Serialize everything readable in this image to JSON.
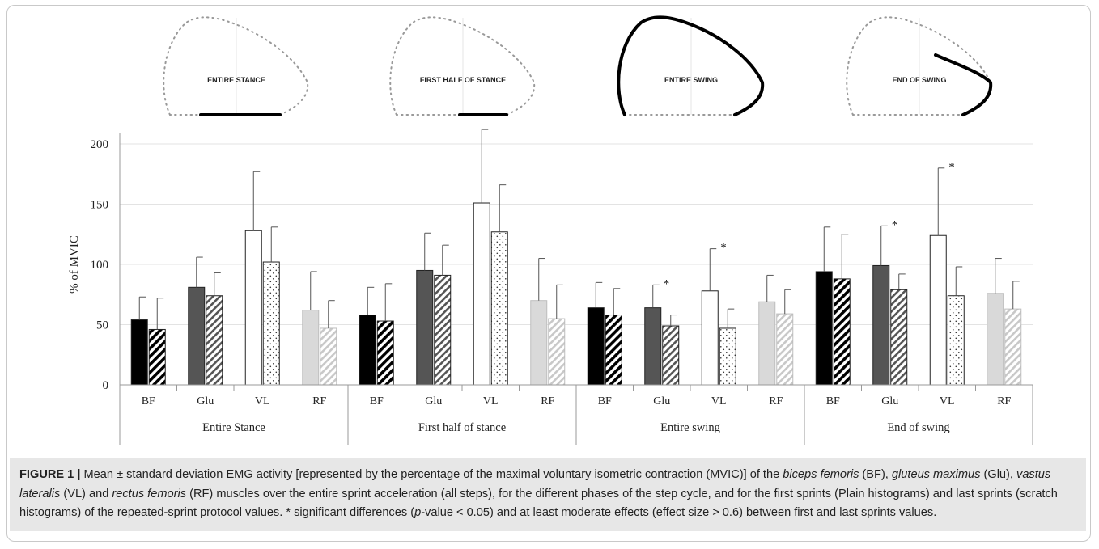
{
  "figure": {
    "caption": {
      "label": "FIGURE 1 |",
      "segments": [
        {
          "t": " Mean ± standard deviation EMG activity [represented by the percentage of the maximal voluntary isometric contraction (MVIC)] of the ",
          "s": "n"
        },
        {
          "t": "biceps femoris",
          "s": "i"
        },
        {
          "t": " (BF), ",
          "s": "n"
        },
        {
          "t": "gluteus maximus",
          "s": "i"
        },
        {
          "t": " (Glu), ",
          "s": "n"
        },
        {
          "t": "vastus lateralis",
          "s": "i"
        },
        {
          "t": " (VL) and ",
          "s": "n"
        },
        {
          "t": "rectus femoris",
          "s": "i"
        },
        {
          "t": " (RF) muscles over the entire sprint acceleration (all steps), for the different phases of the step cycle, and for the first sprints (Plain histograms) and last sprints (scratch histograms) of the repeated-sprint protocol values. * significant differences (",
          "s": "n"
        },
        {
          "t": "p",
          "s": "i"
        },
        {
          "t": "-value < 0.05) and at least moderate effects (effect size > 0.6) between first and last sprints values.",
          "s": "n"
        }
      ]
    }
  },
  "diagrams": [
    {
      "label": "ENTIRE STANCE",
      "highlight": "stance"
    },
    {
      "label": "FIRST HALF OF STANCE",
      "highlight": "first-half-stance"
    },
    {
      "label": "ENTIRE SWING",
      "highlight": "swing"
    },
    {
      "label": "END OF SWING",
      "highlight": "end-swing"
    }
  ],
  "chart_data": {
    "type": "bar",
    "ylabel": "% of MVIC",
    "ylim": [
      0,
      200
    ],
    "yticks": [
      0,
      50,
      100,
      150,
      200
    ],
    "grid": "horizontal",
    "groups": [
      "Entire Stance",
      "First half of stance",
      "Entire swing",
      "End of swing"
    ],
    "muscles": [
      "BF",
      "Glu",
      "VL",
      "RF"
    ],
    "series": [
      {
        "name": "first sprints (Plain histograms)",
        "values": [
          [
            54,
            81,
            128,
            62
          ],
          [
            58,
            95,
            151,
            70
          ],
          [
            64,
            64,
            78,
            69
          ],
          [
            94,
            99,
            124,
            76
          ]
        ],
        "sd": [
          [
            19,
            25,
            49,
            32
          ],
          [
            23,
            31,
            61,
            35
          ],
          [
            21,
            19,
            35,
            22
          ],
          [
            37,
            33,
            56,
            29
          ]
        ]
      },
      {
        "name": "last sprints (scratch histograms)",
        "values": [
          [
            46,
            74,
            102,
            47
          ],
          [
            53,
            91,
            127,
            55
          ],
          [
            58,
            49,
            47,
            59
          ],
          [
            88,
            79,
            74,
            63
          ]
        ],
        "sd": [
          [
            26,
            19,
            29,
            23
          ],
          [
            31,
            25,
            39,
            28
          ],
          [
            22,
            9,
            16,
            20
          ],
          [
            37,
            13,
            24,
            23
          ]
        ]
      }
    ],
    "significant": [
      [
        2,
        1
      ],
      [
        2,
        2
      ],
      [
        3,
        1
      ],
      [
        3,
        2
      ]
    ],
    "significance_marker": "*",
    "colors": {
      "BF": "#000000",
      "Glu": "#555555",
      "VL": "#ffffff",
      "RF": "#d9d9d9",
      "grid": "#e3e3e3",
      "axis": "#999999"
    }
  }
}
